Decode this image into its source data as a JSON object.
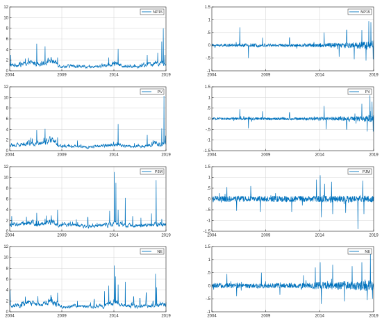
{
  "chart_data": [
    {
      "type": "line",
      "legend": "NP15",
      "legend_position": "top-right",
      "x": [
        2004,
        2005,
        2006,
        2007,
        2008,
        2009,
        2010,
        2011,
        2012,
        2013,
        2014,
        2015,
        2016,
        2017,
        2018,
        2019
      ],
      "xticks": [
        2004,
        2009,
        2014,
        2019
      ],
      "xlim": [
        2004,
        2019
      ],
      "ylim": [
        0,
        12
      ],
      "yticks": [
        0,
        2,
        4,
        6,
        8,
        10,
        12
      ],
      "grid": true,
      "values": [
        1.0,
        1.2,
        1.5,
        1.4,
        2.0,
        0.8,
        0.9,
        0.8,
        0.7,
        1.0,
        1.4,
        0.9,
        0.8,
        1.0,
        1.5,
        1.3
      ],
      "spikes": [
        {
          "x": 2004.1,
          "y": 3.0
        },
        {
          "x": 2005.5,
          "y": 2.3
        },
        {
          "x": 2006.6,
          "y": 5.1
        },
        {
          "x": 2007.4,
          "y": 4.6
        },
        {
          "x": 2008.6,
          "y": 2.5
        },
        {
          "x": 2013.5,
          "y": 2.5
        },
        {
          "x": 2014.4,
          "y": 4.1
        },
        {
          "x": 2017.2,
          "y": 3.0
        },
        {
          "x": 2018.2,
          "y": 3.4
        },
        {
          "x": 2018.6,
          "y": 5.5
        },
        {
          "x": 2018.75,
          "y": 8.0
        },
        {
          "x": 2018.9,
          "y": 3.0
        }
      ]
    },
    {
      "type": "line",
      "legend": "NP15",
      "legend_position": "top-right",
      "x": [
        2004,
        2019
      ],
      "xticks": [
        2004,
        2009,
        2014,
        2019
      ],
      "xlim": [
        2004,
        2019
      ],
      "ylim": [
        -1,
        1.5
      ],
      "yticks": [
        -1,
        -0.5,
        0,
        0.5,
        1,
        1.5
      ],
      "grid": true,
      "noise_amplitude": [
        0.05,
        0.05,
        0.06,
        0.06,
        0.07,
        0.06,
        0.06,
        0.06,
        0.06,
        0.07,
        0.09,
        0.09,
        0.1,
        0.12,
        0.16,
        0.2
      ],
      "spikes": [
        {
          "x": 2006.6,
          "y": 0.7
        },
        {
          "x": 2007.4,
          "y": -0.5
        },
        {
          "x": 2008.7,
          "y": 0.3
        },
        {
          "x": 2011.2,
          "y": 0.3
        },
        {
          "x": 2014.4,
          "y": 0.5
        },
        {
          "x": 2015.8,
          "y": -0.45
        },
        {
          "x": 2016.5,
          "y": 0.6
        },
        {
          "x": 2017.2,
          "y": -0.55
        },
        {
          "x": 2017.9,
          "y": 0.6
        },
        {
          "x": 2018.3,
          "y": -0.6
        },
        {
          "x": 2018.55,
          "y": 0.95
        },
        {
          "x": 2018.75,
          "y": 0.9
        },
        {
          "x": 2018.95,
          "y": -0.55
        }
      ]
    },
    {
      "type": "line",
      "legend": "PV",
      "legend_position": "top-right",
      "x": [
        2004,
        2005,
        2006,
        2007,
        2008,
        2009,
        2010,
        2011,
        2012,
        2013,
        2014,
        2015,
        2016,
        2017,
        2018,
        2019
      ],
      "xticks": [
        2004,
        2009,
        2014,
        2019
      ],
      "xlim": [
        2004,
        2019
      ],
      "ylim": [
        0,
        12
      ],
      "yticks": [
        0,
        2,
        4,
        6,
        8,
        10,
        12
      ],
      "grid": true,
      "values": [
        1.0,
        1.1,
        1.5,
        1.3,
        1.9,
        0.8,
        0.8,
        0.8,
        0.7,
        1.0,
        1.2,
        0.9,
        0.8,
        0.9,
        1.3,
        1.3
      ],
      "spikes": [
        {
          "x": 2006.6,
          "y": 3.9
        },
        {
          "x": 2007.4,
          "y": 4.1
        },
        {
          "x": 2008.6,
          "y": 2.5
        },
        {
          "x": 2010.5,
          "y": 1.9
        },
        {
          "x": 2014.4,
          "y": 5.0
        },
        {
          "x": 2017.2,
          "y": 3.0
        },
        {
          "x": 2018.6,
          "y": 4.2
        },
        {
          "x": 2018.8,
          "y": 10.3
        },
        {
          "x": 2018.95,
          "y": 2.8
        }
      ]
    },
    {
      "type": "line",
      "legend": "PV",
      "legend_position": "top-right",
      "x": [
        2004,
        2019
      ],
      "xticks": [
        2004,
        2009,
        2014,
        2019
      ],
      "xlim": [
        2004,
        2019
      ],
      "ylim": [
        -1.5,
        1.5
      ],
      "yticks": [
        -1.5,
        -1,
        -0.5,
        0,
        0.5,
        1,
        1.5
      ],
      "grid": true,
      "noise_amplitude": [
        0.05,
        0.05,
        0.06,
        0.06,
        0.07,
        0.06,
        0.06,
        0.06,
        0.06,
        0.07,
        0.08,
        0.08,
        0.09,
        0.11,
        0.14,
        0.18
      ],
      "spikes": [
        {
          "x": 2006.6,
          "y": 0.45
        },
        {
          "x": 2007.4,
          "y": -0.45
        },
        {
          "x": 2008.7,
          "y": 0.35
        },
        {
          "x": 2011.2,
          "y": 0.3
        },
        {
          "x": 2014.4,
          "y": 0.6
        },
        {
          "x": 2014.6,
          "y": -0.5
        },
        {
          "x": 2016.5,
          "y": -0.5
        },
        {
          "x": 2017.9,
          "y": 0.7
        },
        {
          "x": 2018.4,
          "y": -0.6
        },
        {
          "x": 2018.65,
          "y": 1.1
        },
        {
          "x": 2018.85,
          "y": 0.8
        },
        {
          "x": 2018.95,
          "y": -0.6
        }
      ]
    },
    {
      "type": "line",
      "legend": "PJM",
      "legend_position": "top-right",
      "x": [
        2004,
        2005,
        2006,
        2007,
        2008,
        2009,
        2010,
        2011,
        2012,
        2013,
        2014,
        2015,
        2016,
        2017,
        2018,
        2019
      ],
      "xticks": [
        2004,
        2009,
        2014,
        2019
      ],
      "xlim": [
        2004,
        2019
      ],
      "ylim": [
        0,
        12
      ],
      "yticks": [
        0,
        2,
        4,
        6,
        8,
        10,
        12
      ],
      "grid": true,
      "values": [
        1.2,
        1.3,
        1.6,
        1.3,
        1.9,
        1.1,
        1.1,
        1.0,
        0.9,
        1.1,
        1.5,
        1.1,
        1.0,
        1.1,
        1.3,
        1.2
      ],
      "spikes": [
        {
          "x": 2004.2,
          "y": 2.8
        },
        {
          "x": 2005.6,
          "y": 2.7
        },
        {
          "x": 2006.6,
          "y": 3.4
        },
        {
          "x": 2007.5,
          "y": 2.9
        },
        {
          "x": 2008.6,
          "y": 4.0
        },
        {
          "x": 2010.4,
          "y": 2.2
        },
        {
          "x": 2011.5,
          "y": 2.6
        },
        {
          "x": 2013.6,
          "y": 3.8
        },
        {
          "x": 2014.05,
          "y": 11.0
        },
        {
          "x": 2014.2,
          "y": 9.0
        },
        {
          "x": 2014.4,
          "y": 4.0
        },
        {
          "x": 2015.1,
          "y": 6.2
        },
        {
          "x": 2015.8,
          "y": 2.8
        },
        {
          "x": 2016.6,
          "y": 2.5
        },
        {
          "x": 2017.6,
          "y": 3.3
        },
        {
          "x": 2018.05,
          "y": 9.5
        },
        {
          "x": 2018.6,
          "y": 2.3
        }
      ]
    },
    {
      "type": "line",
      "legend": "PJM",
      "legend_position": "top-right",
      "x": [
        2004,
        2019
      ],
      "xticks": [
        2004,
        2009,
        2014,
        2019
      ],
      "xlim": [
        2004,
        2019
      ],
      "ylim": [
        -1.5,
        1.5
      ],
      "yticks": [
        -1.5,
        -1,
        -0.5,
        0,
        0.5,
        1,
        1.5
      ],
      "grid": true,
      "noise_amplitude": [
        0.14,
        0.14,
        0.15,
        0.14,
        0.15,
        0.14,
        0.14,
        0.14,
        0.14,
        0.14,
        0.18,
        0.16,
        0.15,
        0.15,
        0.16,
        0.16
      ],
      "spikes": [
        {
          "x": 2005.4,
          "y": 0.55
        },
        {
          "x": 2006.3,
          "y": -0.55
        },
        {
          "x": 2007.6,
          "y": 0.6
        },
        {
          "x": 2008.5,
          "y": -0.6
        },
        {
          "x": 2011.4,
          "y": -0.6
        },
        {
          "x": 2013.7,
          "y": 0.9
        },
        {
          "x": 2014.05,
          "y": 1.1
        },
        {
          "x": 2014.15,
          "y": -0.85
        },
        {
          "x": 2014.45,
          "y": 0.7
        },
        {
          "x": 2015.1,
          "y": 0.8
        },
        {
          "x": 2015.2,
          "y": -0.7
        },
        {
          "x": 2016.4,
          "y": -0.65
        },
        {
          "x": 2017.55,
          "y": -1.4
        },
        {
          "x": 2018.0,
          "y": 0.85
        },
        {
          "x": 2018.1,
          "y": -0.7
        }
      ]
    },
    {
      "type": "line",
      "legend": "NE",
      "legend_position": "top-right",
      "x": [
        2004,
        2005,
        2006,
        2007,
        2008,
        2009,
        2010,
        2011,
        2012,
        2013,
        2014,
        2015,
        2016,
        2017,
        2018,
        2019
      ],
      "xticks": [
        2004,
        2009,
        2014,
        2019
      ],
      "xlim": [
        2004,
        2019
      ],
      "ylim": [
        0,
        12
      ],
      "yticks": [
        0,
        2,
        4,
        6,
        8,
        10,
        12
      ],
      "grid": true,
      "values": [
        1.1,
        1.2,
        1.8,
        1.3,
        1.9,
        1.0,
        1.0,
        1.0,
        0.9,
        1.1,
        1.6,
        1.2,
        1.0,
        1.1,
        1.3,
        1.3
      ],
      "spikes": [
        {
          "x": 2004.05,
          "y": 4.0
        },
        {
          "x": 2005.5,
          "y": 2.8
        },
        {
          "x": 2006.7,
          "y": 2.9
        },
        {
          "x": 2008.6,
          "y": 3.5
        },
        {
          "x": 2010.5,
          "y": 2.0
        },
        {
          "x": 2012.1,
          "y": 2.3
        },
        {
          "x": 2013.1,
          "y": 3.8
        },
        {
          "x": 2013.5,
          "y": 4.8
        },
        {
          "x": 2014.05,
          "y": 8.5
        },
        {
          "x": 2014.15,
          "y": 6.5
        },
        {
          "x": 2014.4,
          "y": 5.0
        },
        {
          "x": 2015.1,
          "y": 5.5
        },
        {
          "x": 2015.9,
          "y": 2.8
        },
        {
          "x": 2016.5,
          "y": 2.5
        },
        {
          "x": 2017.1,
          "y": 3.5
        },
        {
          "x": 2018.0,
          "y": 7.0
        },
        {
          "x": 2018.1,
          "y": 4.5
        }
      ]
    },
    {
      "type": "line",
      "legend": "NE",
      "legend_position": "top-right",
      "x": [
        2004,
        2019
      ],
      "xticks": [
        2004,
        2009,
        2014,
        2019
      ],
      "xlim": [
        2004,
        2019
      ],
      "ylim": [
        -1,
        1.5
      ],
      "yticks": [
        -1,
        -0.5,
        0,
        0.5,
        1,
        1.5
      ],
      "grid": true,
      "noise_amplitude": [
        0.09,
        0.09,
        0.1,
        0.09,
        0.1,
        0.09,
        0.09,
        0.09,
        0.1,
        0.11,
        0.15,
        0.15,
        0.16,
        0.18,
        0.2,
        0.2
      ],
      "spikes": [
        {
          "x": 2005.4,
          "y": 0.45
        },
        {
          "x": 2006.3,
          "y": -0.4
        },
        {
          "x": 2008.6,
          "y": 0.5
        },
        {
          "x": 2010.3,
          "y": -0.35
        },
        {
          "x": 2012.5,
          "y": 0.4
        },
        {
          "x": 2013.6,
          "y": 0.7
        },
        {
          "x": 2014.05,
          "y": 0.9
        },
        {
          "x": 2014.15,
          "y": -0.7
        },
        {
          "x": 2015.2,
          "y": 0.8
        },
        {
          "x": 2016.3,
          "y": -0.6
        },
        {
          "x": 2017.0,
          "y": 0.75
        },
        {
          "x": 2017.9,
          "y": 0.9
        },
        {
          "x": 2018.4,
          "y": -0.55
        },
        {
          "x": 2018.7,
          "y": 1.25
        },
        {
          "x": 2018.9,
          "y": -0.5
        }
      ]
    }
  ],
  "colors": {
    "line": "#0072BD",
    "axis": "#262626",
    "grid": "#d9d9d9",
    "background": "#ffffff"
  }
}
